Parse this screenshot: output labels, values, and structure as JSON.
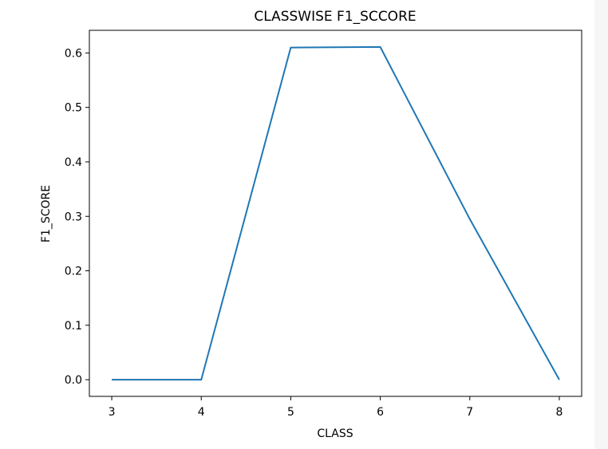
{
  "chart_data": {
    "type": "line",
    "title": "CLASSWISE F1_SCCORE",
    "xlabel": "CLASS",
    "ylabel": "F1_SCORE",
    "x": [
      3,
      4,
      5,
      6,
      7,
      8
    ],
    "series": [
      {
        "values": [
          0.0,
          0.0,
          0.61,
          0.611,
          0.295,
          0.0
        ]
      }
    ],
    "xlim": [
      2.75,
      8.25
    ],
    "ylim": [
      -0.0306,
      0.6416
    ],
    "xticks": [
      3,
      4,
      5,
      6,
      7,
      8
    ],
    "xtick_labels": [
      "3",
      "4",
      "5",
      "6",
      "7",
      "8"
    ],
    "yticks": [
      0.0,
      0.1,
      0.2,
      0.3,
      0.4,
      0.5,
      0.6
    ],
    "ytick_labels": [
      "0.0",
      "0.1",
      "0.2",
      "0.3",
      "0.4",
      "0.5",
      "0.6"
    ],
    "grid": false,
    "line_color": "#1f77b4"
  }
}
